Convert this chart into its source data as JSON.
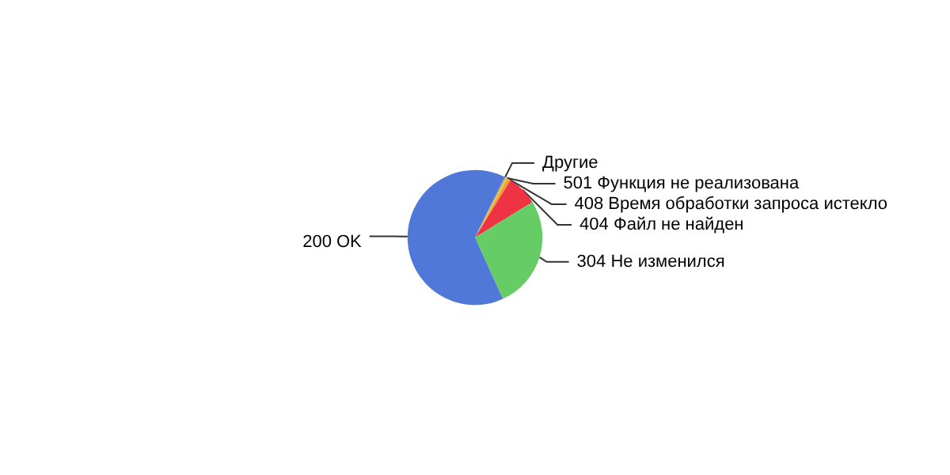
{
  "chart_data": {
    "type": "pie",
    "categories": [
      "Другие",
      "501 Функция не реализована",
      "408 Время обработки запроса истекло",
      "404 Файл не найден",
      "304 Не изменился",
      "200 OK"
    ],
    "values": [
      0.3,
      0.5,
      0.8,
      7.4,
      27,
      64
    ],
    "colors": [
      "#8c8c8c",
      "#e8c840",
      "#f0a030",
      "#ee3344",
      "#66cc66",
      "#5078d8"
    ],
    "legend": false
  }
}
